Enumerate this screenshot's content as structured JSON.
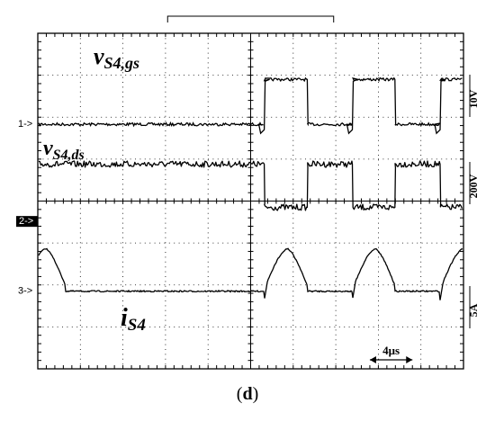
{
  "chart_data": {
    "type": "line",
    "grid": true,
    "x_div_label": "4μs",
    "x_divisions": 10,
    "y_divisions": 8,
    "channels": [
      {
        "marker": "1->",
        "name": "vS4,gs",
        "name_main": "v",
        "name_sub": "S4,gs",
        "scale": "10V",
        "low_level_div": 1.83,
        "high_level_div": 2.9,
        "transitions_div": [
          0.32,
          1.33,
          2.39,
          3.39,
          4.45
        ],
        "start_high": false
      },
      {
        "marker": "2->",
        "name": "vS4,ds",
        "name_main": "v",
        "name_sub": "S4,ds",
        "scale": "200V",
        "low_level_div": -0.15,
        "high_level_div": 0.88,
        "transitions_div": [
          0.32,
          1.33,
          2.39,
          3.39,
          4.45
        ],
        "start_high": true
      },
      {
        "marker": "3->",
        "name": "iS4",
        "name_main": "i",
        "name_sub": "S4",
        "scale": "5A",
        "baseline_div": -2.15,
        "peak_div": -1.13,
        "conduction_intervals_div": [
          [
            -5.0,
            -4.35
          ],
          [
            0.32,
            1.33
          ],
          [
            2.39,
            3.39
          ],
          [
            4.45,
            5.0
          ]
        ]
      }
    ],
    "caption": "(d)"
  }
}
